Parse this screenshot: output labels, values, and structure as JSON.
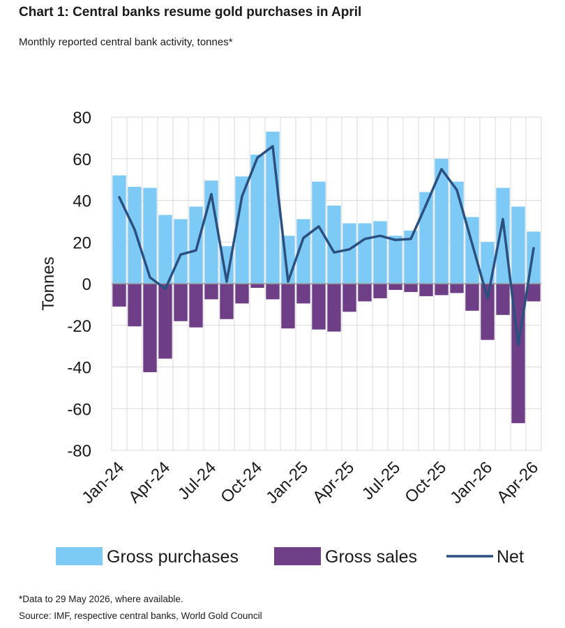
{
  "header": {
    "title": "Chart 1: Central banks resume gold purchases in April",
    "subtitle": "Monthly reported central bank activity, tonnes*"
  },
  "footer": {
    "footnote": "*Data to 29 May 2026, where available.",
    "source": "Source: IMF, respective central banks, World Gold Council"
  },
  "chart_data": {
    "type": "bar",
    "ylabel": "Tonnes",
    "xlabel": "",
    "ylim": [
      -80,
      80
    ],
    "yticks": [
      80,
      60,
      40,
      20,
      0,
      -20,
      -40,
      -60,
      -80
    ],
    "grid": true,
    "legend_position": "bottom",
    "x_tick_labels": [
      {
        "index": 0,
        "label": "Jan-24"
      },
      {
        "index": 3,
        "label": "Apr-24"
      },
      {
        "index": 6,
        "label": "Jul-24"
      },
      {
        "index": 9,
        "label": "Oct-24"
      },
      {
        "index": 12,
        "label": "Jan-25"
      },
      {
        "index": 15,
        "label": "Apr-25"
      },
      {
        "index": 18,
        "label": "Jul-25"
      },
      {
        "index": 21,
        "label": "Oct-25"
      },
      {
        "index": 24,
        "label": "Jan-26"
      },
      {
        "index": 27,
        "label": "Apr-26"
      }
    ],
    "categories": [
      "Jan-24",
      "Feb-24",
      "Mar-24",
      "Apr-24",
      "May-24",
      "Jun-24",
      "Jul-24",
      "Aug-24",
      "Sep-24",
      "Oct-24",
      "Nov-24",
      "Dec-24",
      "Jan-25",
      "Feb-25",
      "Mar-25",
      "Apr-25",
      "May-25",
      "Jun-25",
      "Jul-25",
      "Aug-25",
      "Sep-25",
      "Oct-25",
      "Nov-25",
      "Dec-25",
      "Jan-26",
      "Feb-26",
      "Mar-26",
      "Apr-26"
    ],
    "series": [
      {
        "name": "Gross purchases",
        "type": "bar",
        "color": "#7ccaf5",
        "values": [
          52,
          46.5,
          46,
          33,
          31,
          37,
          49.5,
          18,
          51.5,
          62,
          73,
          23,
          31,
          49,
          37.5,
          29,
          29,
          30,
          23,
          25.5,
          44,
          60,
          49,
          32,
          20,
          46,
          37,
          25
        ]
      },
      {
        "name": "Gross sales",
        "type": "bar",
        "color": "#6e3f86",
        "values": [
          -11,
          -20.5,
          -42.5,
          -36,
          -18,
          -21,
          -7.5,
          -17,
          -9.5,
          -2,
          -7.5,
          -21.5,
          -9.5,
          -22,
          -23,
          -13.5,
          -8.5,
          -7,
          -3,
          -4,
          -6,
          -5.5,
          -4.5,
          -13,
          -27,
          -15,
          -67,
          -8.5
        ]
      },
      {
        "name": "Net",
        "type": "line",
        "color": "#2b4f7e",
        "values": [
          41.5,
          26,
          3,
          -2.5,
          14,
          16,
          43,
          1,
          42,
          60.5,
          66,
          1,
          22,
          27.5,
          15,
          16.5,
          21.5,
          23,
          21,
          21.5,
          38,
          55,
          45,
          19,
          -7,
          31,
          -29.5,
          17
        ]
      }
    ]
  }
}
